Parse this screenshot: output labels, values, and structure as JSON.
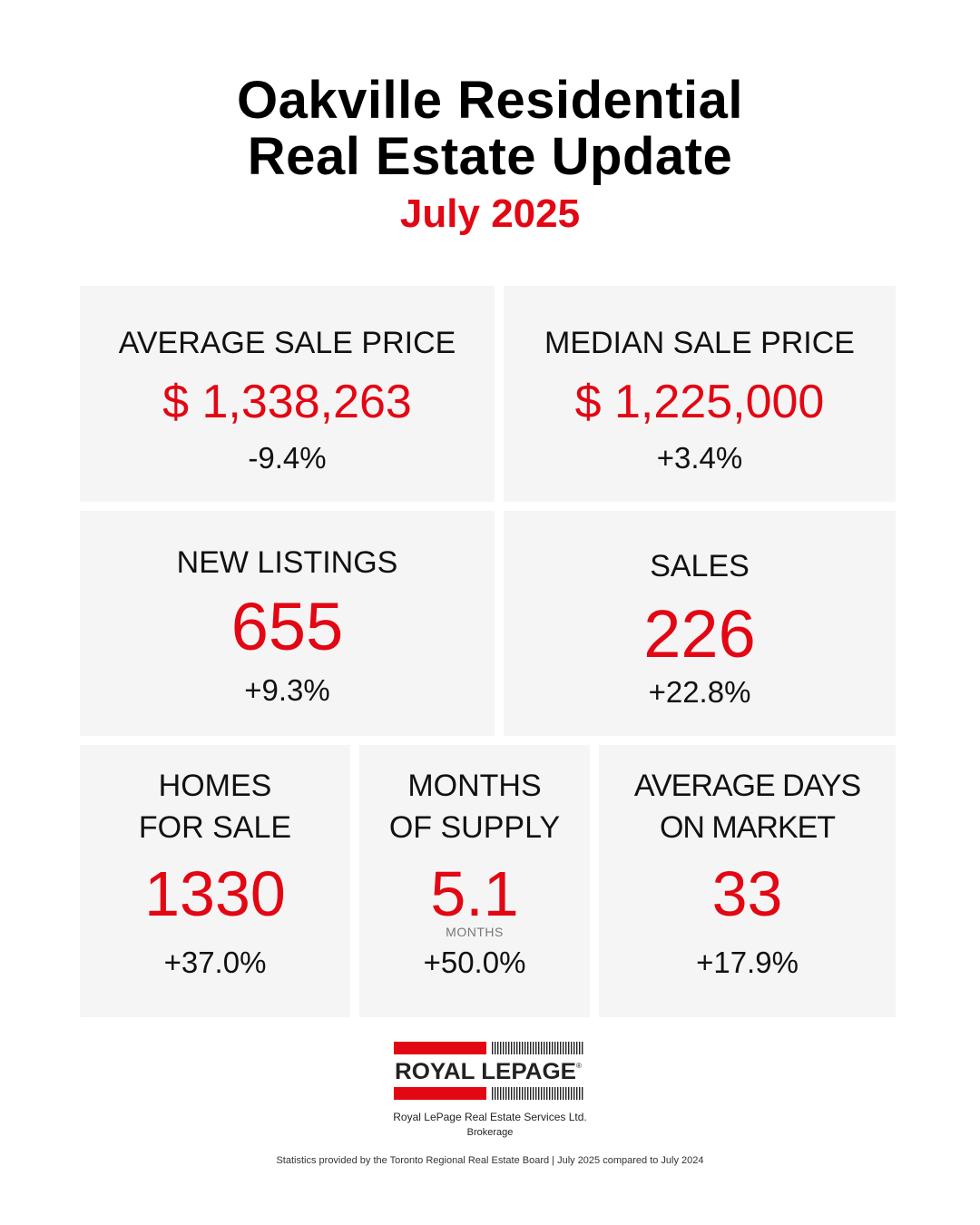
{
  "header": {
    "title_line1": "Oakville Residential",
    "title_line2": "Real Estate Update",
    "period": "July 2025"
  },
  "stats": {
    "average_sale_price": {
      "label": "AVERAGE SALE PRICE",
      "value": "$ 1,338,263",
      "change": "-9.4%"
    },
    "median_sale_price": {
      "label": "MEDIAN SALE PRICE",
      "value": "$ 1,225,000",
      "change": "+3.4%"
    },
    "new_listings": {
      "label": "NEW LISTINGS",
      "value": "655",
      "change": "+9.3%"
    },
    "sales": {
      "label": "SALES",
      "value": "226",
      "change": "+22.8%"
    },
    "homes_for_sale": {
      "label_line1": "HOMES",
      "label_line2": "FOR SALE",
      "value": "1330",
      "change": "+37.0%"
    },
    "months_of_supply": {
      "label_line1": "MONTHS",
      "label_line2": "OF SUPPLY",
      "value": "5.1",
      "unit": "MONTHS",
      "change": "+50.0%"
    },
    "average_days_on_market": {
      "label_line1": "AVERAGE DAYS",
      "label_line2": "ON MARKET",
      "value": "33",
      "change": "+17.9%"
    }
  },
  "brand": {
    "logo_text": "ROYAL LEPAGE",
    "company": "Royal LePage Real Estate Services Ltd.",
    "brokerage": "Brokerage"
  },
  "footer": {
    "note": "Statistics provided by the Toronto Regional Real Estate Board | July 2025 compared to July 2024"
  },
  "colors": {
    "accent": "#e30613",
    "card_bg": "#f5f5f5"
  }
}
